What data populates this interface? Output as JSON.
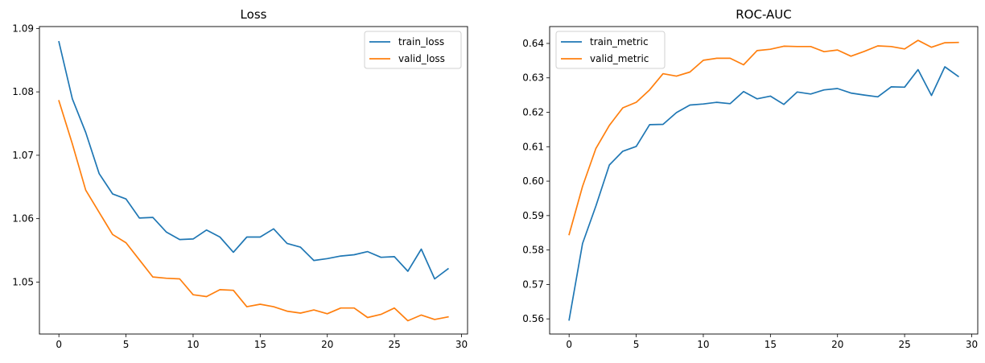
{
  "chart_data": [
    {
      "type": "line",
      "title": "Loss",
      "xlabel": "",
      "ylabel": "",
      "xlim": [
        -1.45,
        30.45
      ],
      "ylim": [
        1.0418,
        1.0903
      ],
      "xticks": [
        0,
        5,
        10,
        15,
        20,
        25,
        30
      ],
      "yticks": [
        1.05,
        1.06,
        1.07,
        1.08,
        1.09
      ],
      "ytick_labels": [
        "1.05",
        "1.06",
        "1.07",
        "1.08",
        "1.09"
      ],
      "legend_loc": "top-right",
      "x": [
        0,
        1,
        2,
        3,
        4,
        5,
        6,
        7,
        8,
        9,
        10,
        11,
        12,
        13,
        14,
        15,
        16,
        17,
        18,
        19,
        20,
        21,
        22,
        23,
        24,
        25,
        26,
        27,
        28,
        29
      ],
      "series": [
        {
          "name": "train_loss",
          "color": "#1f77b4",
          "values": [
            1.0879,
            1.0789,
            1.0736,
            1.0671,
            1.0639,
            1.0631,
            1.0601,
            1.0602,
            1.0579,
            1.0567,
            1.0568,
            1.0582,
            1.0571,
            1.0547,
            1.0571,
            1.0571,
            1.0584,
            1.0561,
            1.0555,
            1.0534,
            1.0537,
            1.0541,
            1.0543,
            1.0548,
            1.0539,
            1.054,
            1.0517,
            1.0552,
            1.0505,
            1.0521
          ]
        },
        {
          "name": "valid_loss",
          "color": "#ff7f0e",
          "values": [
            1.0786,
            1.0718,
            1.0645,
            1.061,
            1.0575,
            1.0562,
            1.0535,
            1.0508,
            1.0506,
            1.0505,
            1.048,
            1.0477,
            1.0488,
            1.0487,
            1.0461,
            1.0465,
            1.0461,
            1.0454,
            1.0451,
            1.0456,
            1.045,
            1.0459,
            1.0459,
            1.0444,
            1.0449,
            1.0459,
            1.0439,
            1.0448,
            1.0441,
            1.0445
          ]
        }
      ]
    },
    {
      "type": "line",
      "title": "ROC-AUC",
      "xlabel": "",
      "ylabel": "",
      "xlim": [
        -1.45,
        30.45
      ],
      "ylim": [
        0.5556,
        0.6449
      ],
      "xticks": [
        0,
        5,
        10,
        15,
        20,
        25,
        30
      ],
      "yticks": [
        0.56,
        0.57,
        0.58,
        0.59,
        0.6,
        0.61,
        0.62,
        0.63,
        0.64
      ],
      "ytick_labels": [
        "0.56",
        "0.57",
        "0.58",
        "0.59",
        "0.60",
        "0.61",
        "0.62",
        "0.63",
        "0.64"
      ],
      "legend_loc": "top-left",
      "x": [
        0,
        1,
        2,
        3,
        4,
        5,
        6,
        7,
        8,
        9,
        10,
        11,
        12,
        13,
        14,
        15,
        16,
        17,
        18,
        19,
        20,
        21,
        22,
        23,
        24,
        25,
        26,
        27,
        28,
        29
      ],
      "series": [
        {
          "name": "train_metric",
          "color": "#1f77b4",
          "values": [
            0.5597,
            0.5819,
            0.5928,
            0.6047,
            0.6087,
            0.6101,
            0.6164,
            0.6165,
            0.6199,
            0.6221,
            0.6224,
            0.6229,
            0.6225,
            0.626,
            0.6239,
            0.6247,
            0.6223,
            0.6259,
            0.6253,
            0.6265,
            0.6269,
            0.6256,
            0.625,
            0.6245,
            0.6274,
            0.6273,
            0.6324,
            0.6249,
            0.6332,
            0.6304
          ]
        },
        {
          "name": "valid_metric",
          "color": "#ff7f0e",
          "values": [
            0.5845,
            0.5985,
            0.6095,
            0.6162,
            0.6213,
            0.6229,
            0.6265,
            0.6312,
            0.6305,
            0.6317,
            0.6351,
            0.6357,
            0.6357,
            0.6338,
            0.6379,
            0.6383,
            0.6392,
            0.6391,
            0.6391,
            0.6376,
            0.6381,
            0.6363,
            0.6377,
            0.6393,
            0.6391,
            0.6384,
            0.6409,
            0.6389,
            0.6402,
            0.6403
          ]
        }
      ]
    }
  ]
}
